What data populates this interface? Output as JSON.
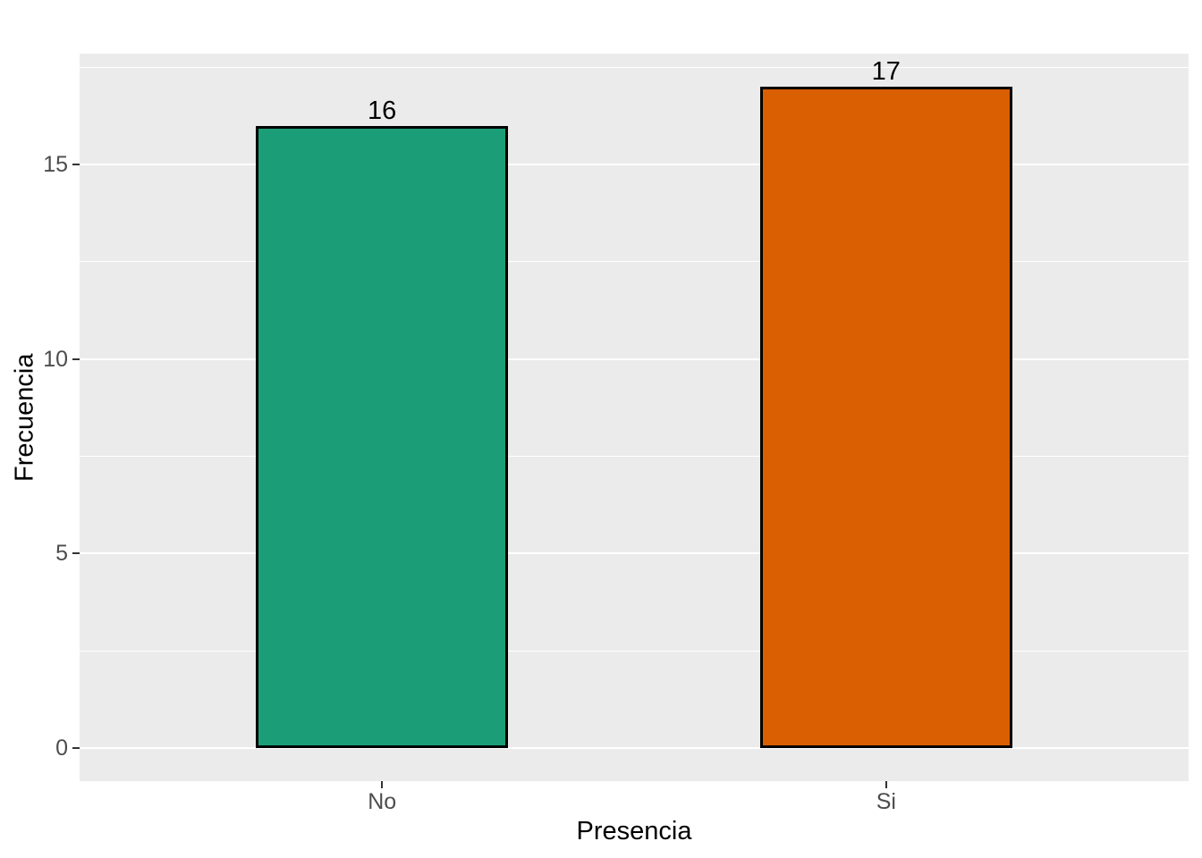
{
  "chart_data": {
    "type": "bar",
    "title": "",
    "xlabel": "Presencia",
    "ylabel": "Frecuencia",
    "categories": [
      "No",
      "Si"
    ],
    "values": [
      16,
      17
    ],
    "bar_labels": [
      "16",
      "17"
    ],
    "bar_colors": [
      "#1B9E77",
      "#D95F02"
    ],
    "bar_border_color": "#000000",
    "x_positions": [
      1,
      2
    ],
    "bar_width_units": 0.5,
    "xlim": [
      0.4,
      2.6
    ],
    "ylim": [
      -0.85,
      17.85
    ],
    "yticks": [
      0,
      5,
      10,
      15
    ],
    "ytick_labels": [
      "0",
      "5",
      "10",
      "15"
    ],
    "minor_yticks": [
      2.5,
      7.5,
      12.5,
      17.5
    ],
    "grid": true,
    "legend_position": "none",
    "panel_bg": "#EBEBEB",
    "grid_color": "#FFFFFF",
    "axis_text_color": "#4D4D4D",
    "axis_title_color": "#000000",
    "tick_mark_color": "#333333"
  }
}
